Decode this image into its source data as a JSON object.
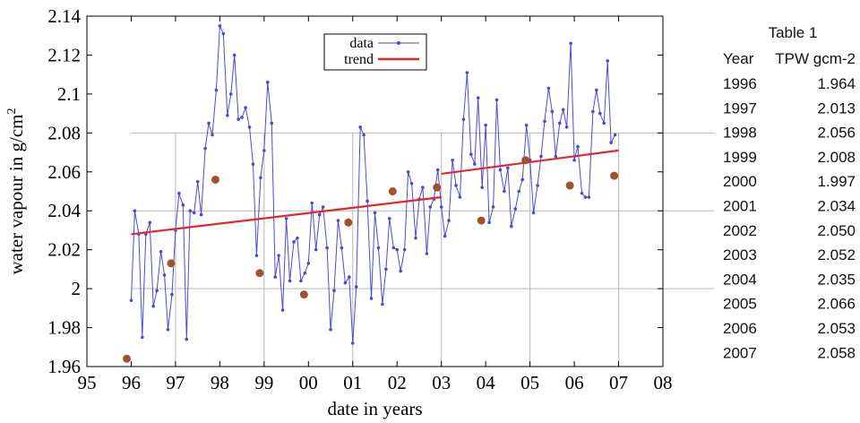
{
  "chart_data": {
    "type": "line",
    "xlabel": "date in years",
    "ylabel": "water vapour in g/cm",
    "ylabel_sup": "2",
    "xlim": [
      95,
      108
    ],
    "ylim": [
      1.96,
      2.14
    ],
    "x_ticks": [
      95,
      96,
      97,
      98,
      99,
      100,
      101,
      102,
      103,
      104,
      105,
      106,
      107,
      108
    ],
    "x_tick_labels": [
      "95",
      "96",
      "97",
      "98",
      "99",
      "00",
      "01",
      "02",
      "03",
      "04",
      "05",
      "06",
      "07",
      "08"
    ],
    "y_ticks": [
      1.96,
      1.98,
      2.0,
      2.02,
      2.04,
      2.06,
      2.08,
      2.1,
      2.12,
      2.14
    ],
    "y_tick_labels": [
      "1.96",
      "1.98",
      "2",
      "2.02",
      "2.04",
      "2.06",
      "2.08",
      "2.1",
      "2.12",
      "2.14"
    ],
    "grid": true,
    "legend_position": "top-center",
    "series": [
      {
        "name": "data",
        "style": "line-with-points",
        "color": "#4a4ad8",
        "x": [
          96.0,
          96.08,
          96.17,
          96.25,
          96.33,
          96.42,
          96.5,
          96.58,
          96.67,
          96.75,
          96.83,
          96.92,
          97.0,
          97.08,
          97.17,
          97.25,
          97.33,
          97.42,
          97.5,
          97.58,
          97.67,
          97.75,
          97.83,
          97.92,
          98.0,
          98.08,
          98.17,
          98.25,
          98.33,
          98.42,
          98.5,
          98.58,
          98.67,
          98.75,
          98.83,
          98.92,
          99.0,
          99.08,
          99.17,
          99.25,
          99.33,
          99.42,
          99.5,
          99.58,
          99.67,
          99.75,
          99.83,
          99.92,
          100.0,
          100.08,
          100.17,
          100.25,
          100.33,
          100.42,
          100.5,
          100.58,
          100.67,
          100.75,
          100.83,
          100.92,
          101.0,
          101.08,
          101.17,
          101.25,
          101.33,
          101.42,
          101.5,
          101.58,
          101.67,
          101.75,
          101.83,
          101.92,
          102.0,
          102.08,
          102.17,
          102.25,
          102.33,
          102.42,
          102.5,
          102.58,
          102.67,
          102.75,
          102.83,
          102.92,
          103.0,
          103.08,
          103.17,
          103.25,
          103.33,
          103.42,
          103.5,
          103.58,
          103.67,
          103.75,
          103.83,
          103.92,
          104.0,
          104.08,
          104.17,
          104.25,
          104.33,
          104.42,
          104.5,
          104.58,
          104.67,
          104.75,
          104.83,
          104.92,
          105.0,
          105.08,
          105.17,
          105.25,
          105.33,
          105.42,
          105.5,
          105.58,
          105.67,
          105.75,
          105.83,
          105.92,
          106.0,
          106.08,
          106.17,
          106.25,
          106.33,
          106.42,
          106.5,
          106.58,
          106.67,
          106.75,
          106.83,
          106.92
        ],
        "values": [
          1.994,
          2.04,
          2.028,
          1.975,
          2.028,
          2.034,
          1.991,
          1.999,
          2.019,
          2.007,
          1.979,
          1.997,
          2.03,
          2.049,
          2.043,
          1.974,
          2.04,
          2.039,
          2.055,
          2.038,
          2.072,
          2.085,
          2.079,
          2.102,
          2.135,
          2.131,
          2.089,
          2.1,
          2.12,
          2.087,
          2.088,
          2.093,
          2.083,
          2.064,
          2.017,
          2.057,
          2.071,
          2.106,
          2.085,
          2.006,
          2.017,
          1.989,
          2.036,
          2.004,
          2.024,
          2.026,
          2.004,
          2.008,
          2.013,
          2.044,
          2.02,
          2.038,
          2.042,
          2.021,
          1.979,
          1.999,
          2.035,
          2.021,
          2.003,
          2.006,
          1.972,
          2.001,
          2.083,
          2.079,
          2.045,
          1.995,
          2.039,
          2.021,
          1.992,
          2.01,
          2.036,
          2.021,
          2.02,
          2.009,
          2.02,
          2.06,
          2.054,
          2.026,
          2.046,
          2.052,
          2.018,
          2.042,
          2.046,
          2.061,
          2.042,
          2.027,
          2.035,
          2.066,
          2.053,
          2.047,
          2.087,
          2.111,
          2.069,
          2.064,
          2.098,
          2.052,
          2.084,
          2.034,
          2.042,
          2.097,
          2.061,
          2.05,
          2.062,
          2.032,
          2.041,
          2.05,
          2.056,
          2.084,
          2.066,
          2.039,
          2.053,
          2.068,
          2.086,
          2.103,
          2.091,
          2.068,
          2.085,
          2.092,
          2.083,
          2.126,
          2.066,
          2.073,
          2.049,
          2.047,
          2.047,
          2.091,
          2.102,
          2.09,
          2.085,
          2.117,
          2.075,
          2.079
        ]
      },
      {
        "name": "trend",
        "style": "line",
        "color": "#e02828",
        "segments": [
          {
            "x": [
              96.0,
              103.0
            ],
            "values": [
              2.028,
              2.047
            ]
          },
          {
            "x": [
              103.0,
              107.0
            ],
            "values": [
              2.059,
              2.071
            ]
          }
        ]
      },
      {
        "name": "",
        "style": "markers",
        "color": "#a0522d",
        "x": [
          95.9,
          96.9,
          97.9,
          98.9,
          99.9,
          100.9,
          101.9,
          102.9,
          103.9,
          104.9,
          105.9,
          106.9
        ],
        "values": [
          1.964,
          2.013,
          2.056,
          2.008,
          1.997,
          2.034,
          2.05,
          2.052,
          2.035,
          2.066,
          2.053,
          2.058
        ]
      }
    ]
  },
  "table": {
    "title": "Table 1",
    "headers": [
      "Year",
      "TPW gcm-2"
    ],
    "rows": [
      [
        "1996",
        "1.964"
      ],
      [
        "1997",
        "2.013"
      ],
      [
        "1998",
        "2.056"
      ],
      [
        "1999",
        "2.008"
      ],
      [
        "2000",
        "1.997"
      ],
      [
        "2001",
        "2.034"
      ],
      [
        "2002",
        "2.050"
      ],
      [
        "2003",
        "2.052"
      ],
      [
        "2004",
        "2.035"
      ],
      [
        "2005",
        "2.066"
      ],
      [
        "2006",
        "2.053"
      ],
      [
        "2007",
        "2.058"
      ]
    ]
  }
}
